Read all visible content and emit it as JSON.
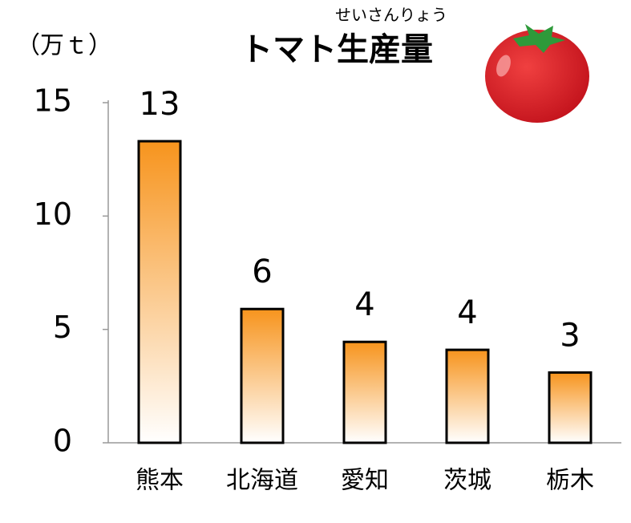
{
  "chart_data": {
    "type": "bar",
    "title": "トマト生産量",
    "title_ruby": "せいさんりょう",
    "y_label": "（万ｔ）",
    "categories": [
      "熊本",
      "北海道",
      "愛知",
      "茨城",
      "栃木"
    ],
    "values": [
      13.3,
      5.9,
      4.45,
      4.1,
      3.1
    ],
    "value_labels": [
      "13",
      "6",
      "4",
      "4",
      "3"
    ],
    "color": "#f7941d",
    "ylim": [
      0,
      15
    ],
    "yticks": [
      0,
      5,
      10,
      15
    ]
  }
}
